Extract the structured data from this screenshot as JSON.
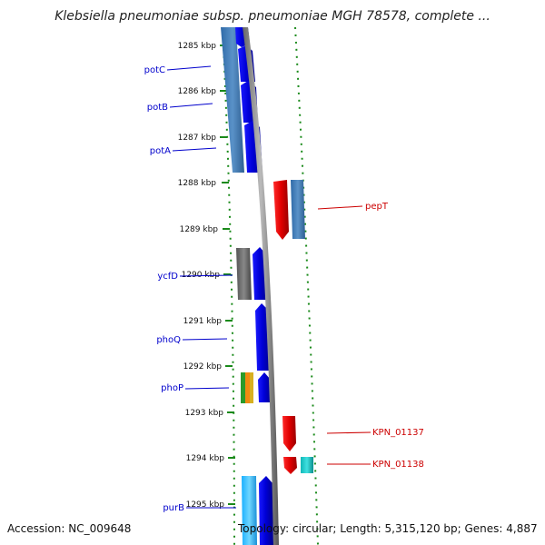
{
  "title": "Klebsiella pneumoniae subsp. pneumoniae MGH 78578, complete ...",
  "footer": {
    "accession": "Accession: NC_009648",
    "summary": "Topology: circular; Length: 5,315,120 bp; Genes: 4,887"
  },
  "ticks": [
    "1285 kbp",
    "1286 kbp",
    "1287 kbp",
    "1288 kbp",
    "1289 kbp",
    "1290 kbp",
    "1291 kbp",
    "1292 kbp",
    "1293 kbp",
    "1294 kbp",
    "1295 kbp"
  ],
  "genes": [
    {
      "name": "potC",
      "strand": "left",
      "color": "#0000cc"
    },
    {
      "name": "potB",
      "strand": "left",
      "color": "#0000cc"
    },
    {
      "name": "potA",
      "strand": "left",
      "color": "#0000cc"
    },
    {
      "name": "ycfD",
      "strand": "left",
      "color": "#0000cc"
    },
    {
      "name": "phoQ",
      "strand": "left",
      "color": "#0000cc"
    },
    {
      "name": "phoP",
      "strand": "left",
      "color": "#0000cc"
    },
    {
      "name": "purB",
      "strand": "left",
      "color": "#0000cc"
    },
    {
      "name": "pepT",
      "strand": "right",
      "color": "#cc0000"
    },
    {
      "name": "KPN_01137",
      "strand": "right",
      "color": "#cc0000"
    },
    {
      "name": "KPN_01138",
      "strand": "right",
      "color": "#cc0000"
    }
  ]
}
